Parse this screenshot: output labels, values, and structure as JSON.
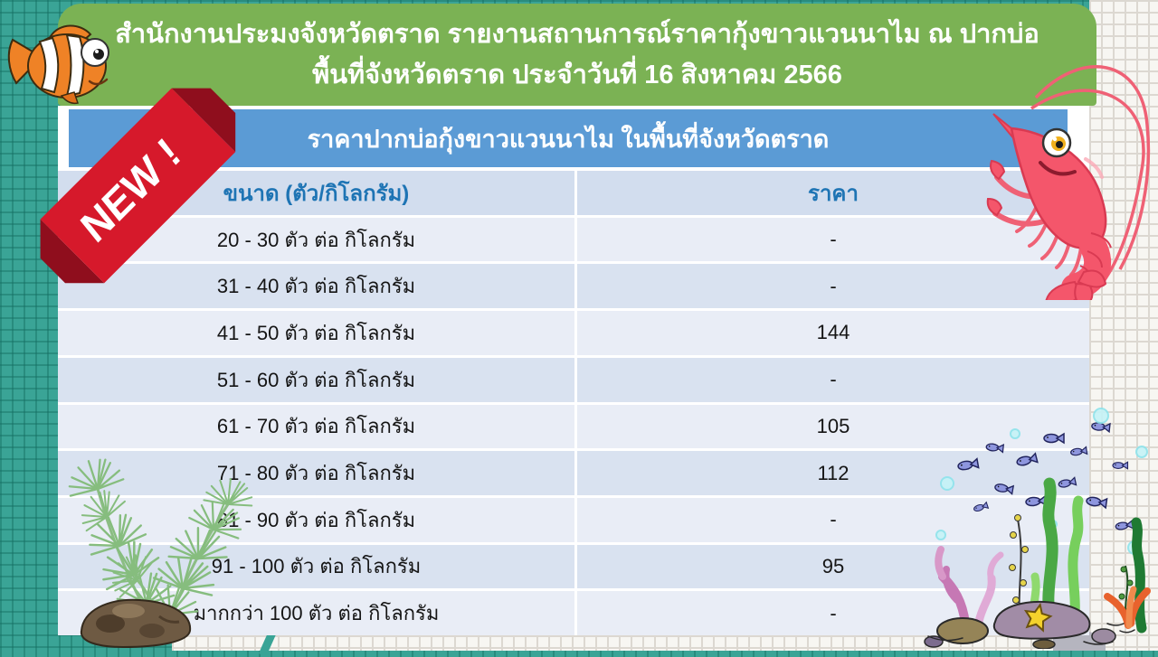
{
  "header": {
    "line1": "สำนักงานประมงจังหวัดตราด  รายงานสถานการณ์ราคากุ้งขาวแวนนาไม  ณ  ปากบ่อ",
    "line2": "พื้นที่จังหวัดตราด ประจำวันที่ 16 สิงหาคม 2566"
  },
  "subheader": {
    "title": "ราคาปากบ่อกุ้งขาวแวนนาไม  ในพื้นที่จังหวัดตราด"
  },
  "ribbon": {
    "label": "NEW !"
  },
  "table": {
    "columns": [
      "ขนาด (ตัว/กิโลกรัม)",
      "ราคา"
    ],
    "rows": [
      {
        "size": "20 - 30 ตัว ต่อ กิโลกรัม",
        "price": "-"
      },
      {
        "size": "31 - 40 ตัว ต่อ กิโลกรัม",
        "price": "-"
      },
      {
        "size": "41 - 50 ตัว ต่อ กิโลกรัม",
        "price": "144"
      },
      {
        "size": "51 - 60 ตัว ต่อ กิโลกรัม",
        "price": "-"
      },
      {
        "size": "61 - 70 ตัว ต่อ กิโลกรัม",
        "price": "105"
      },
      {
        "size": "71 - 80 ตัว ต่อ กิโลกรัม",
        "price": "112"
      },
      {
        "size": "81 - 90 ตัว ต่อ กิโลกรัม",
        "price": "-"
      },
      {
        "size": "91 - 100 ตัว ต่อ กิโลกรัม",
        "price": "95"
      },
      {
        "size": "มากกว่า 100 ตัว ต่อ กิโลกรัม",
        "price": "-"
      }
    ]
  },
  "illustrations": [
    "clownfish",
    "shrimp",
    "aquatic-plant",
    "coral-reef-scene",
    "new-ribbon"
  ],
  "colors": {
    "header_green": "#7bb254",
    "band_blue": "#5b9bd5",
    "header_row_bg": "#d2ddee",
    "row_light": "#e9edf6",
    "row_dark": "#d9e2f0",
    "header_text_blue": "#1e74b4",
    "ribbon_red": "#d6192b",
    "ribbon_red_dark": "#8f0e1d",
    "background_teal": "#3aa496"
  }
}
